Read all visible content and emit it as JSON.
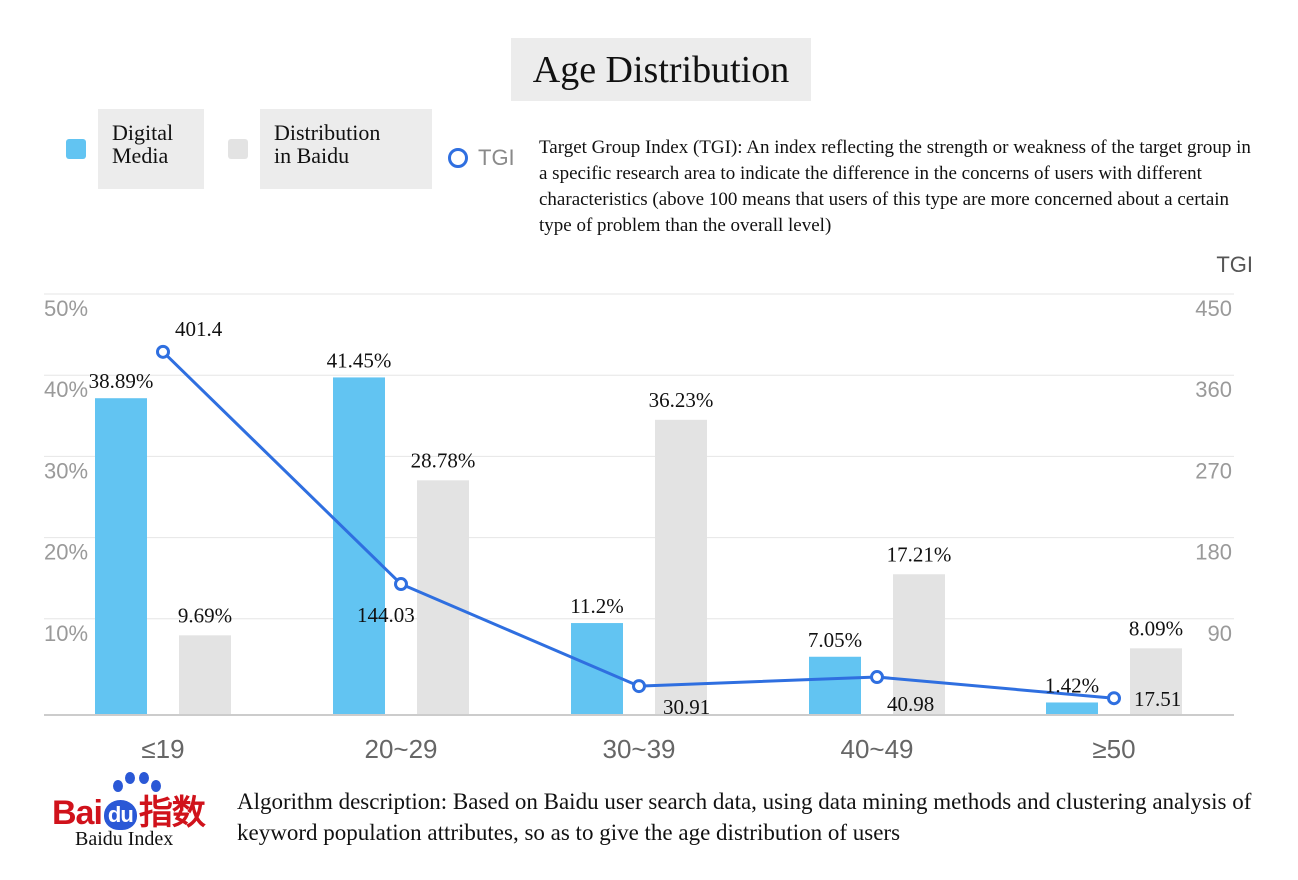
{
  "chart_data": {
    "type": "bar",
    "title": "Age Distribution",
    "categories": [
      "≤19",
      "20~29",
      "30~39",
      "40~49",
      "≥50"
    ],
    "series": [
      {
        "name": "Digital Media",
        "type": "bar",
        "color": "#62c4f2",
        "values": [
          38.89,
          41.45,
          11.2,
          7.05,
          1.42
        ],
        "labels": [
          "38.89%",
          "41.45%",
          "11.2%",
          "7.05%",
          "1.42%"
        ]
      },
      {
        "name": "Distribution in Baidu",
        "type": "bar",
        "color": "#e3e3e3",
        "values": [
          9.69,
          28.78,
          36.23,
          17.21,
          8.09
        ],
        "labels": [
          "9.69%",
          "28.78%",
          "36.23%",
          "17.21%",
          "8.09%"
        ]
      },
      {
        "name": "TGI",
        "type": "line",
        "axis": "right",
        "color": "#2f6fe0",
        "values": [
          401.4,
          144.03,
          30.91,
          40.98,
          17.51
        ],
        "labels": [
          "401.4",
          "144.03",
          "30.91",
          "40.98",
          "17.51"
        ]
      }
    ],
    "y_left": {
      "ylim": [
        0,
        50
      ],
      "ticks": [
        10,
        20,
        30,
        40,
        50
      ],
      "tick_labels": [
        "10%",
        "20%",
        "30%",
        "40%",
        "50%"
      ]
    },
    "y_right": {
      "label": "TGI",
      "ylim": [
        0,
        450
      ],
      "ticks": [
        90,
        180,
        270,
        360,
        450
      ],
      "tick_labels": [
        "90",
        "180",
        "270",
        "360",
        "450"
      ]
    },
    "grid": true,
    "legend_position": "top-left"
  },
  "legend": {
    "digital_media": "Digital\nMedia",
    "distribution_baidu": "Distribution\nin Baidu",
    "tgi": "TGI"
  },
  "tgi_note": "Target Group Index (TGI): An index reflecting the strength or weakness of the target group in a specific research area to indicate the difference in the concerns of users with different characteristics (above 100 means that users of this type are more concerned about a certain type of problem than the overall level)",
  "footer": {
    "logo_text_left": "Bai",
    "logo_text_du": "du",
    "logo_text_right": "指数",
    "logo_caption": "Baidu Index",
    "description": "Algorithm description: Based on Baidu user search data, using data mining methods and clustering analysis of keyword population attributes, so as to give the age distribution of users"
  },
  "colors": {
    "grid": "#e6e6e6",
    "axis_text": "#9a9a9a",
    "baseline": "#cccccc"
  }
}
